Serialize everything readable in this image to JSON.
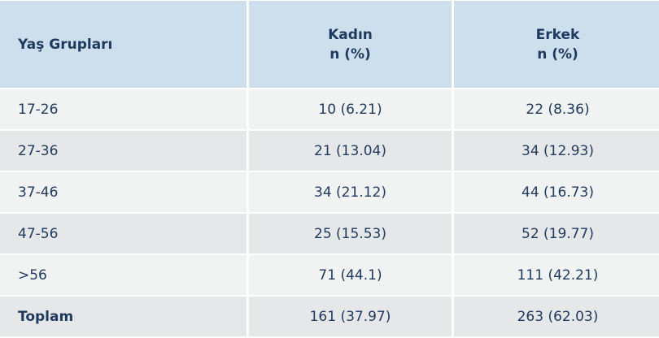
{
  "table": {
    "headers": [
      {
        "line1": "Yaş Grupları",
        "line2": ""
      },
      {
        "line1": "Kadın",
        "line2": "n (%)"
      },
      {
        "line1": "Erkek",
        "line2": "n (%)"
      }
    ],
    "rows": [
      [
        "17-26",
        "10 (6.21)",
        "22 (8.36)"
      ],
      [
        "27-36",
        "21 (13.04)",
        "34 (12.93)"
      ],
      [
        "37-46",
        "34 (21.12)",
        "44 (16.73)"
      ],
      [
        "47-56",
        "25 (15.53)",
        "52 (19.77)"
      ],
      [
        ">56",
        "71 (44.1)",
        "111 (42.21)"
      ],
      [
        "Toplam",
        "161 (37.97)",
        "263 (62.03)"
      ]
    ],
    "colors": {
      "header_bg": "#cddfec",
      "row_light": "#f1f2f2",
      "row_dark": "#e6e7e8",
      "text": "#1f3a5f"
    }
  }
}
